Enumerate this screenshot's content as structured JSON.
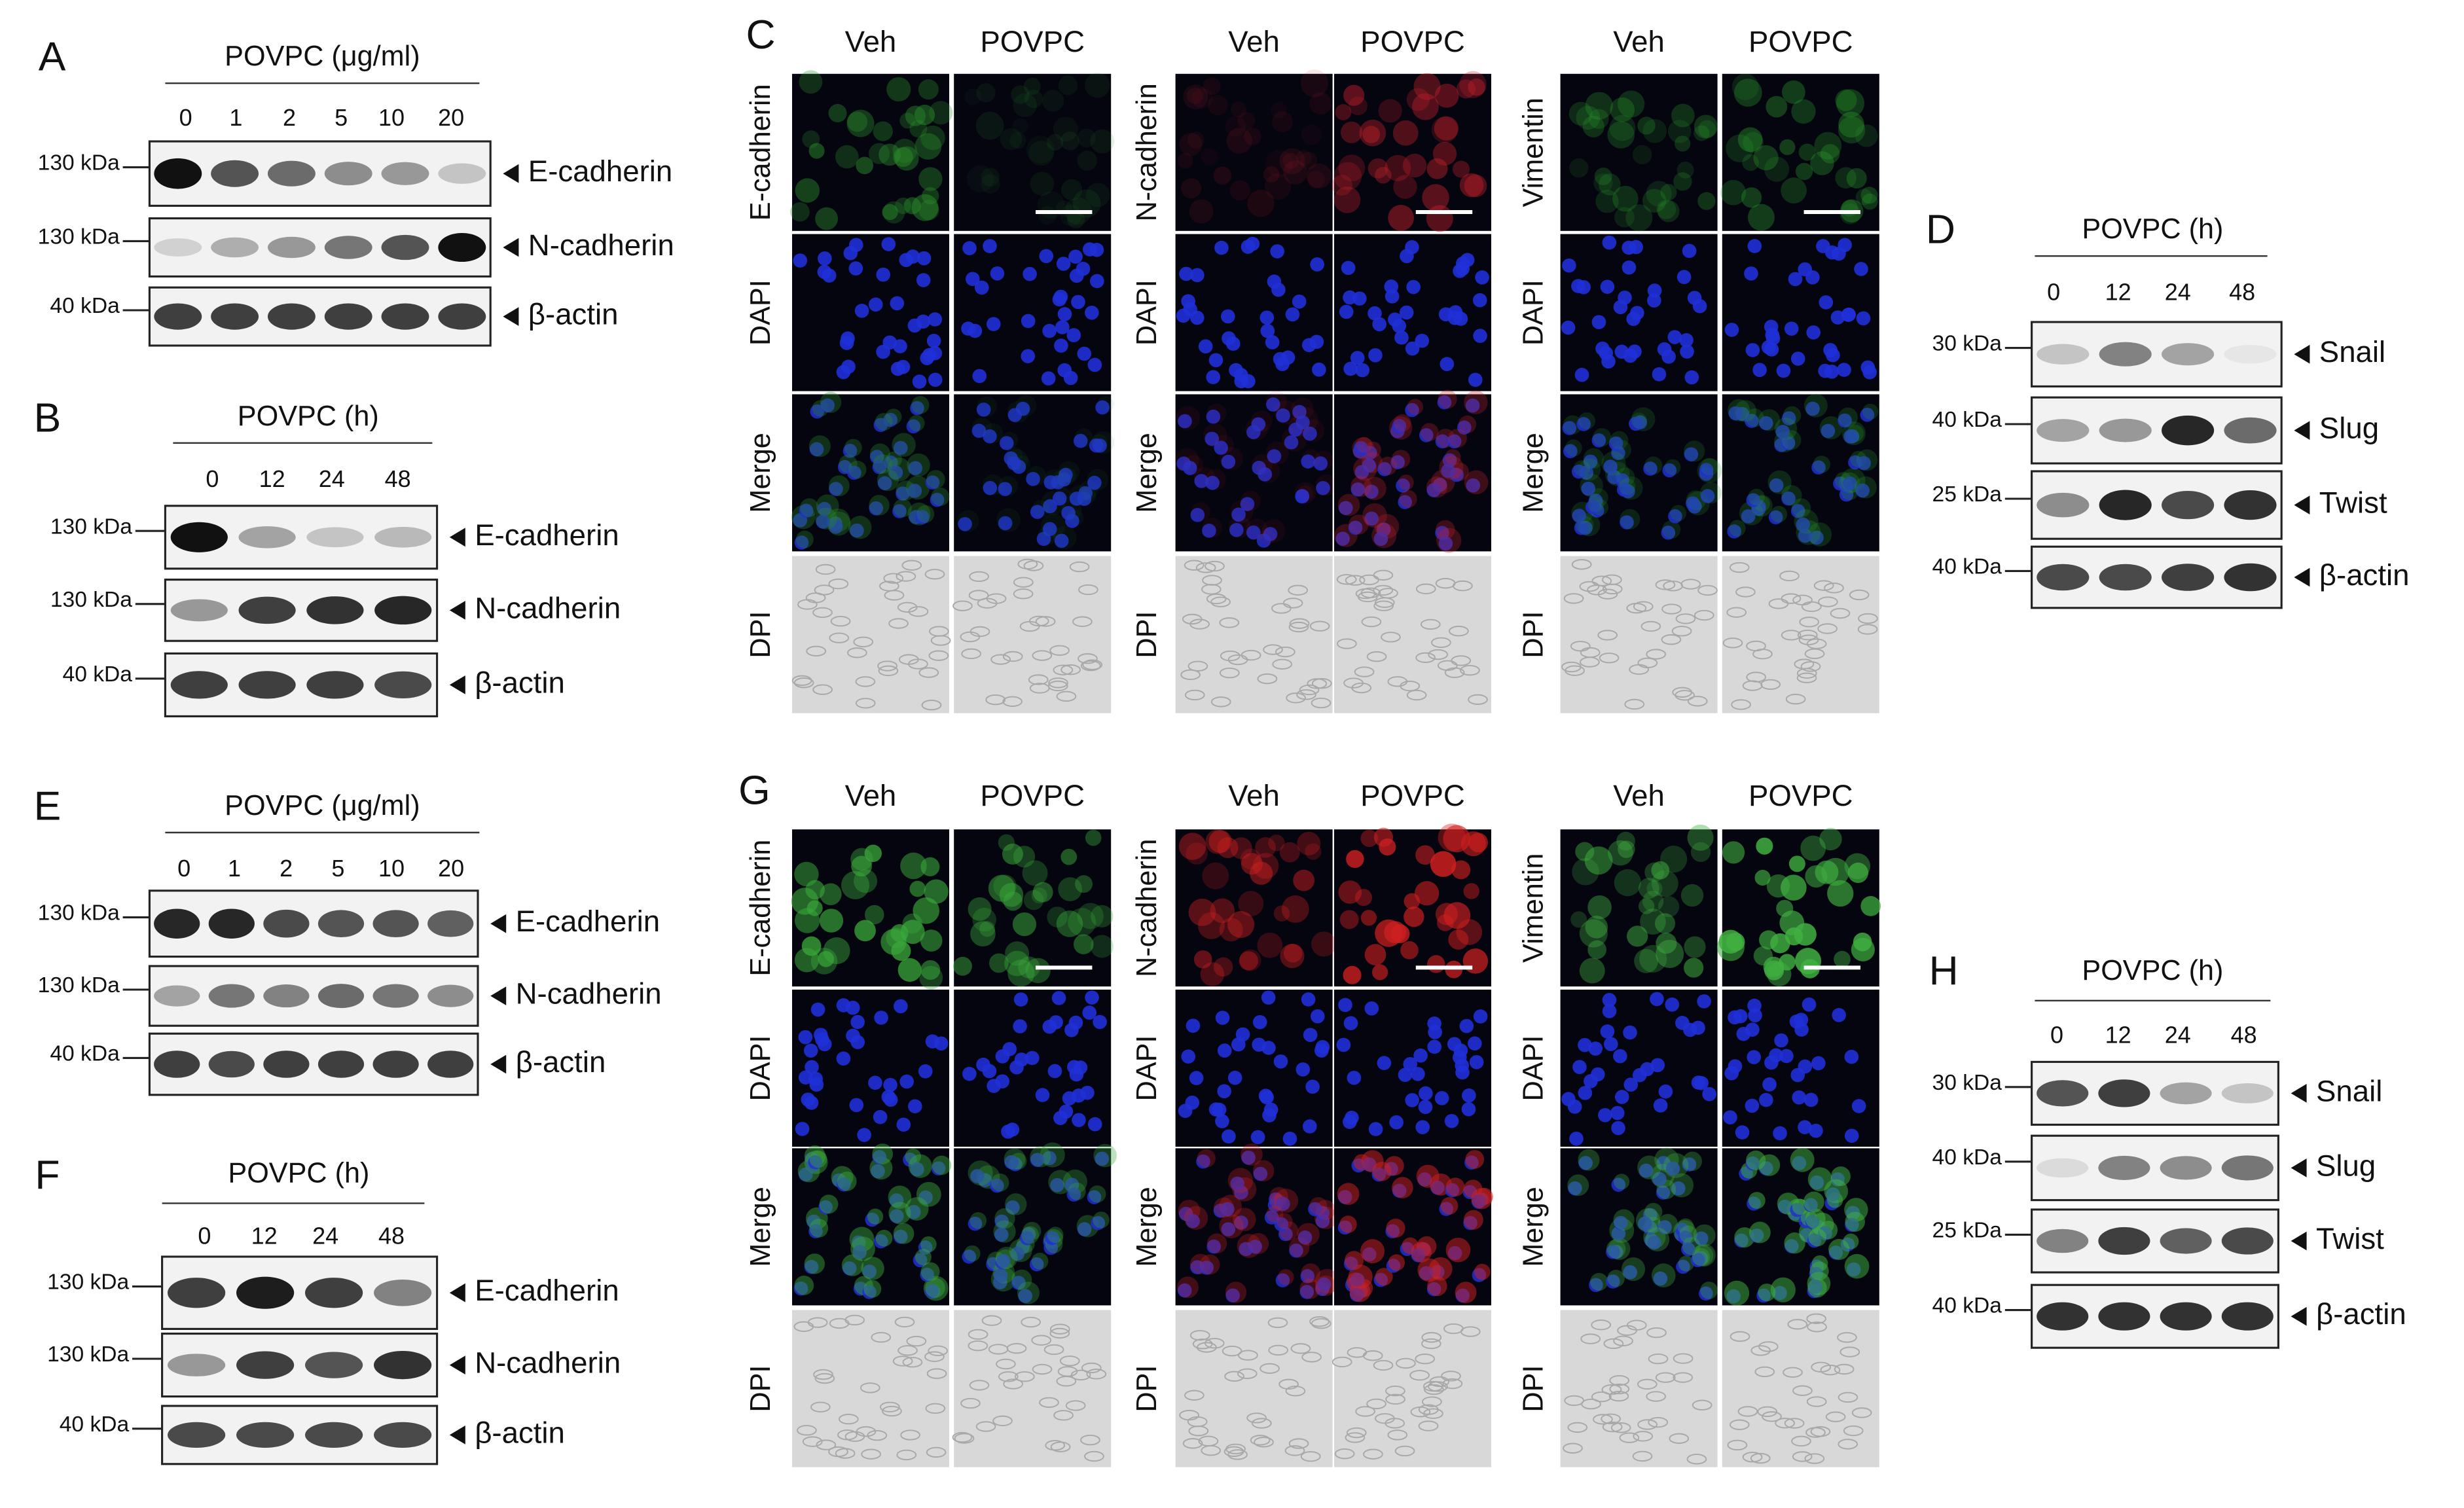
{
  "blots": {
    "A": {
      "label": "A",
      "treatment": "POVPC (μg/ml)",
      "lanes": [
        "0",
        "1",
        "2",
        "5",
        "10",
        "20"
      ],
      "rows": [
        {
          "marker": "130 kDa",
          "protein": "E-cadherin"
        },
        {
          "marker": "130 kDa",
          "protein": "N-cadherin"
        },
        {
          "marker": "40 kDa",
          "protein": "β-actin"
        }
      ]
    },
    "B": {
      "label": "B",
      "treatment": "POVPC (h)",
      "lanes": [
        "0",
        "12",
        "24",
        "48"
      ],
      "rows": [
        {
          "marker": "130 kDa",
          "protein": "E-cadherin"
        },
        {
          "marker": "130 kDa",
          "protein": "N-cadherin"
        },
        {
          "marker": "40 kDa",
          "protein": "β-actin"
        }
      ]
    },
    "D": {
      "label": "D",
      "treatment": "POVPC (h)",
      "lanes": [
        "0",
        "12",
        "24",
        "48"
      ],
      "rows": [
        {
          "marker": "30 kDa",
          "protein": "Snail"
        },
        {
          "marker": "40 kDa",
          "protein": "Slug"
        },
        {
          "marker": "25 kDa",
          "protein": "Twist"
        },
        {
          "marker": "40 kDa",
          "protein": "β-actin"
        }
      ]
    },
    "E": {
      "label": "E",
      "treatment": "POVPC (μg/ml)",
      "lanes": [
        "0",
        "1",
        "2",
        "5",
        "10",
        "20"
      ],
      "rows": [
        {
          "marker": "130 kDa",
          "protein": "E-cadherin"
        },
        {
          "marker": "130 kDa",
          "protein": "N-cadherin"
        },
        {
          "marker": "40 kDa",
          "protein": "β-actin"
        }
      ]
    },
    "F": {
      "label": "F",
      "treatment": "POVPC (h)",
      "lanes": [
        "0",
        "12",
        "24",
        "48"
      ],
      "rows": [
        {
          "marker": "130 kDa",
          "protein": "E-cadherin"
        },
        {
          "marker": "130 kDa",
          "protein": "N-cadherin"
        },
        {
          "marker": "40 kDa",
          "protein": "β-actin"
        }
      ]
    },
    "H": {
      "label": "H",
      "treatment": "POVPC (h)",
      "lanes": [
        "0",
        "12",
        "24",
        "48"
      ],
      "rows": [
        {
          "marker": "30 kDa",
          "protein": "Snail"
        },
        {
          "marker": "40 kDa",
          "protein": "Slug"
        },
        {
          "marker": "25 kDa",
          "protein": "Twist"
        },
        {
          "marker": "40 kDa",
          "protein": "β-actin"
        }
      ]
    }
  },
  "images": {
    "C": {
      "label": "C",
      "groups": [
        {
          "columns": [
            "Veh",
            "POVPC"
          ],
          "rows": [
            "E-cadherin",
            "DAPI",
            "Merge",
            "DPI"
          ]
        },
        {
          "columns": [
            "Veh",
            "POVPC"
          ],
          "rows": [
            "N-cadherin",
            "DAPI",
            "Merge",
            "DPI"
          ]
        },
        {
          "columns": [
            "Veh",
            "POVPC"
          ],
          "rows": [
            "Vimentin",
            "DAPI",
            "Merge",
            "DPI"
          ]
        }
      ]
    },
    "G": {
      "label": "G",
      "groups": [
        {
          "columns": [
            "Veh",
            "POVPC"
          ],
          "rows": [
            "E-cadherin",
            "DAPI",
            "Merge",
            "DPI"
          ]
        },
        {
          "columns": [
            "Veh",
            "POVPC"
          ],
          "rows": [
            "N-cadherin",
            "DAPI",
            "Merge",
            "DPI"
          ]
        },
        {
          "columns": [
            "Veh",
            "POVPC"
          ],
          "rows": [
            "Vimentin",
            "DAPI",
            "Merge",
            "DPI"
          ]
        }
      ]
    }
  }
}
